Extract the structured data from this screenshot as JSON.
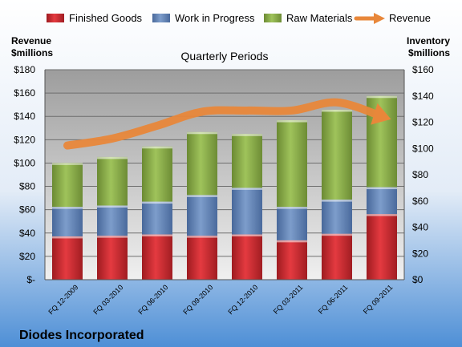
{
  "company": "Diodes Incorporated",
  "chart_data": {
    "type": "bar",
    "title": "Quarterly Periods",
    "left_axis_label": [
      "Revenue",
      "$millions"
    ],
    "right_axis_label": [
      "Inventory",
      "$millions"
    ],
    "categories": [
      "FQ 12-2009",
      "FQ 03-2010",
      "FQ 06-2010",
      "FQ 09-2010",
      "FQ 12-2010",
      "FQ 03-2011",
      "FQ 06-2011",
      "FQ 09-2011"
    ],
    "inventory_axis": {
      "ylim": [
        0,
        160
      ],
      "ticks": [
        0,
        20,
        40,
        60,
        80,
        100,
        120,
        140,
        160
      ],
      "tick_labels": [
        "$0",
        "$20",
        "$40",
        "$60",
        "$80",
        "$100",
        "$120",
        "$140",
        "$160"
      ]
    },
    "revenue_axis": {
      "ylim": [
        0,
        180
      ],
      "ticks": [
        0,
        20,
        40,
        60,
        80,
        100,
        120,
        140,
        160,
        180
      ],
      "tick_labels": [
        "$-",
        "$20",
        "$40",
        "$60",
        "$80",
        "$100",
        "$120",
        "$140",
        "$160",
        "$180"
      ]
    },
    "series": [
      {
        "name": "Finished Goods",
        "kind": "stacked-bar",
        "axis": "right",
        "color": "#c0272d",
        "values": [
          33,
          33.5,
          34.5,
          33.5,
          34.5,
          30,
          35,
          50
        ]
      },
      {
        "name": "Work in Progress",
        "kind": "stacked-bar",
        "axis": "right",
        "color": "#5b7fb4",
        "values": [
          22.5,
          23,
          25,
          31,
          35.5,
          25.5,
          26,
          20.5
        ]
      },
      {
        "name": "Raw Materials",
        "kind": "stacked-bar",
        "axis": "right",
        "color": "#8db04a",
        "values": [
          33.5,
          37,
          42,
          48,
          41,
          66,
          68.5,
          69.5
        ]
      },
      {
        "name": "Revenue",
        "kind": "line",
        "axis": "left",
        "color": "#e8873a",
        "values": [
          115,
          121,
          132,
          144,
          145,
          145,
          152,
          140
        ]
      }
    ],
    "legend_position": "top",
    "grid": true
  }
}
